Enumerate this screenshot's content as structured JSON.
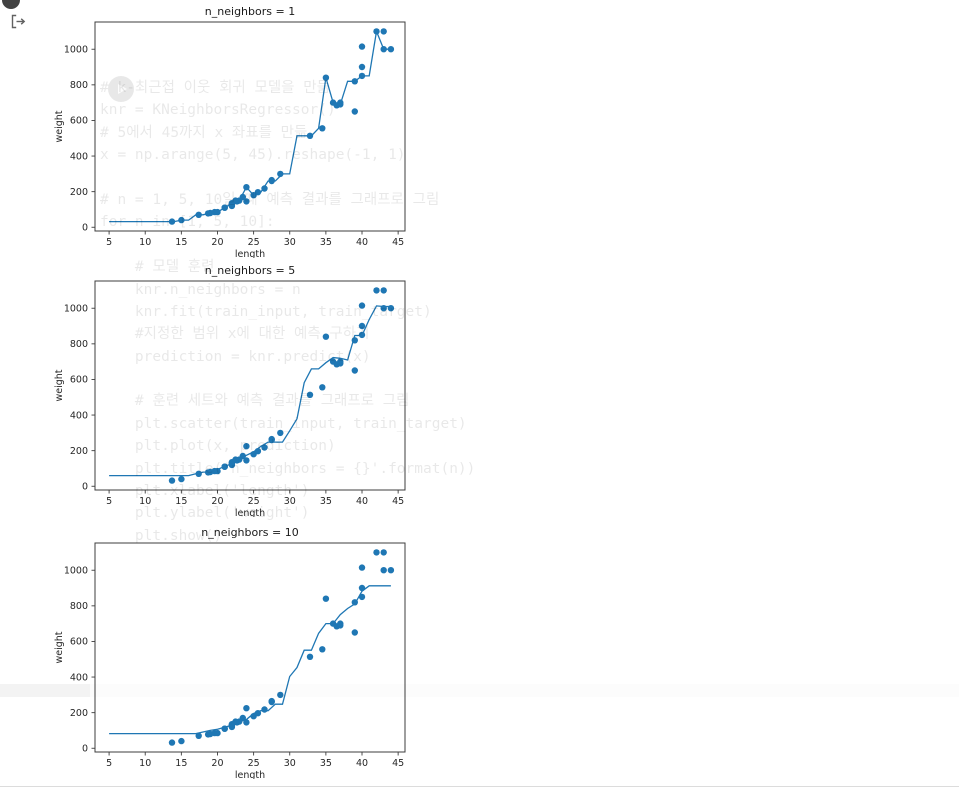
{
  "colors": {
    "accent": "#1f77b4",
    "spine": "#3c3c3c",
    "tick_label": "#262626",
    "title_text": "#1a1a1a"
  },
  "icons": {
    "run_cell_button": "filled-circle",
    "cell_output_icon": "bracket-arrow-right",
    "play_button_icon": "circle-play"
  },
  "faint_code": {
    "lines": [
      "# k-최근접 이웃 회귀 모델을 만듦",
      "knr = KNeighborsRegressor()",
      "# 5에서 45까지 x 좌표를 만듦",
      "x = np.arange(5, 45).reshape(-1, 1)",
      "",
      "# n = 1, 5, 10일 때 예측 결과를 그래프로 그림",
      "for n in [1, 5, 10]:",
      "",
      "    # 모델 훈련",
      "    knr.n_neighbors = n",
      "    knr.fit(train_input, train_target)",
      "    #지정한 범위 x에 대한 예측 구하기",
      "    prediction = knr.predict(x)",
      "",
      "    # 훈련 세트와 예측 결과를 그래프로 그림",
      "    plt.scatter(train_input, train_target)",
      "    plt.plot(x, prediction)",
      "    plt.title('n_neighbors = {}'.format(n))",
      "    plt.xlabel('length')",
      "    plt.ylabel('weight')",
      "    plt.show()"
    ]
  },
  "chart_data": [
    {
      "type": "scatter",
      "title": "n_neighbors = 1",
      "xlabel": "length",
      "ylabel": "weight",
      "xlim": [
        3.05,
        45.95
      ],
      "ylim": [
        -21,
        1153
      ],
      "xticks": [
        5,
        10,
        15,
        20,
        25,
        30,
        35,
        40,
        45
      ],
      "yticks": [
        0,
        200,
        400,
        600,
        800,
        1000
      ],
      "line": {
        "x_from": 5,
        "x_to": 44,
        "n_neighbors": 1
      },
      "scatter": {
        "x": [
          19.6,
          22.0,
          18.7,
          17.4,
          36.0,
          25.0,
          40.0,
          39.0,
          43.0,
          22.0,
          20.0,
          22.0,
          24.0,
          27.5,
          43.0,
          40.0,
          24.0,
          21.0,
          27.5,
          40.0,
          32.8,
          26.5,
          36.5,
          13.7,
          22.7,
          15.0,
          37.0,
          35.0,
          28.7,
          23.5,
          39.0,
          21.0,
          23.0,
          22.0,
          44.0,
          22.5,
          19.0,
          37.0,
          22.0,
          25.6,
          42.0,
          34.5
        ],
        "y": [
          85.0,
          135.0,
          78.0,
          70.0,
          700.0,
          180.0,
          850.0,
          820.0,
          1000.0,
          120.0,
          85.0,
          130.0,
          225.0,
          260.0,
          1100.0,
          1015.0,
          145.0,
          110.0,
          265.0,
          900.0,
          514.0,
          218.0,
          685.0,
          32.0,
          145.0,
          40.0,
          690.0,
          840.0,
          300.0,
          170.0,
          650.0,
          110.0,
          150.0,
          130.0,
          1000.0,
          150.0,
          80.0,
          700.0,
          120.0,
          197.0,
          1100.0,
          556.0
        ]
      }
    },
    {
      "type": "scatter",
      "title": "n_neighbors = 5",
      "xlabel": "length",
      "ylabel": "weight",
      "xlim": [
        3.05,
        45.95
      ],
      "ylim": [
        -21,
        1153
      ],
      "xticks": [
        5,
        10,
        15,
        20,
        25,
        30,
        35,
        40,
        45
      ],
      "yticks": [
        0,
        200,
        400,
        600,
        800,
        1000
      ],
      "line": {
        "x_from": 5,
        "x_to": 44,
        "n_neighbors": 5
      },
      "scatter": {
        "x": [
          19.6,
          22.0,
          18.7,
          17.4,
          36.0,
          25.0,
          40.0,
          39.0,
          43.0,
          22.0,
          20.0,
          22.0,
          24.0,
          27.5,
          43.0,
          40.0,
          24.0,
          21.0,
          27.5,
          40.0,
          32.8,
          26.5,
          36.5,
          13.7,
          22.7,
          15.0,
          37.0,
          35.0,
          28.7,
          23.5,
          39.0,
          21.0,
          23.0,
          22.0,
          44.0,
          22.5,
          19.0,
          37.0,
          22.0,
          25.6,
          42.0,
          34.5
        ],
        "y": [
          85.0,
          135.0,
          78.0,
          70.0,
          700.0,
          180.0,
          850.0,
          820.0,
          1000.0,
          120.0,
          85.0,
          130.0,
          225.0,
          260.0,
          1100.0,
          1015.0,
          145.0,
          110.0,
          265.0,
          900.0,
          514.0,
          218.0,
          685.0,
          32.0,
          145.0,
          40.0,
          690.0,
          840.0,
          300.0,
          170.0,
          650.0,
          110.0,
          150.0,
          130.0,
          1000.0,
          150.0,
          80.0,
          700.0,
          120.0,
          197.0,
          1100.0,
          556.0
        ]
      }
    },
    {
      "type": "scatter",
      "title": "n_neighbors = 10",
      "xlabel": "length",
      "ylabel": "weight",
      "xlim": [
        3.05,
        45.95
      ],
      "ylim": [
        -21,
        1153
      ],
      "xticks": [
        5,
        10,
        15,
        20,
        25,
        30,
        35,
        40,
        45
      ],
      "yticks": [
        0,
        200,
        400,
        600,
        800,
        1000
      ],
      "line": {
        "x_from": 5,
        "x_to": 44,
        "n_neighbors": 10
      },
      "scatter": {
        "x": [
          19.6,
          22.0,
          18.7,
          17.4,
          36.0,
          25.0,
          40.0,
          39.0,
          43.0,
          22.0,
          20.0,
          22.0,
          24.0,
          27.5,
          43.0,
          40.0,
          24.0,
          21.0,
          27.5,
          40.0,
          32.8,
          26.5,
          36.5,
          13.7,
          22.7,
          15.0,
          37.0,
          35.0,
          28.7,
          23.5,
          39.0,
          21.0,
          23.0,
          22.0,
          44.0,
          22.5,
          19.0,
          37.0,
          22.0,
          25.6,
          42.0,
          34.5
        ],
        "y": [
          85.0,
          135.0,
          78.0,
          70.0,
          700.0,
          180.0,
          850.0,
          820.0,
          1000.0,
          120.0,
          85.0,
          130.0,
          225.0,
          260.0,
          1100.0,
          1015.0,
          145.0,
          110.0,
          265.0,
          900.0,
          514.0,
          218.0,
          685.0,
          32.0,
          145.0,
          40.0,
          690.0,
          840.0,
          300.0,
          170.0,
          650.0,
          110.0,
          150.0,
          130.0,
          1000.0,
          150.0,
          80.0,
          700.0,
          120.0,
          197.0,
          1100.0,
          556.0
        ]
      }
    }
  ]
}
